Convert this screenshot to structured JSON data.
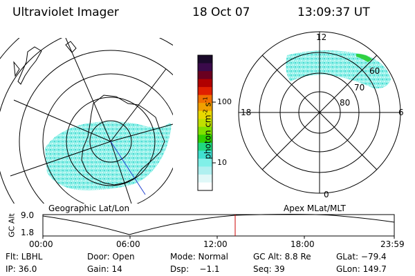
{
  "header": {
    "instrument": "Ultraviolet Imager",
    "date": "18 Oct 07",
    "time": "13:09:37 UT"
  },
  "left_map": {
    "label": "Geographic Lat/Lon"
  },
  "right_map": {
    "label": "Apex MLat/MLT",
    "mlt_labels": {
      "top": "12",
      "bottom": "0",
      "left": "18",
      "right": "6"
    },
    "lat_labels": [
      "60",
      "70",
      "80"
    ]
  },
  "colorbar": {
    "unit_label": "photon cm^-2 s^-1",
    "unit_base": "photon cm",
    "unit_exp1": "-2",
    "unit_mid": "s",
    "unit_exp2": "-1",
    "tick_labels": [
      "100",
      "10"
    ],
    "colors_top_to_bottom": [
      "#1a0a2a",
      "#3a0a4a",
      "#6a0020",
      "#b00000",
      "#e02000",
      "#f07000",
      "#f0a000",
      "#e8d800",
      "#c0e000",
      "#80e000",
      "#30d000",
      "#20d880",
      "#40e0d0",
      "#80f0e8",
      "#b0f0f0",
      "#e0f8f8",
      "#ffffff"
    ]
  },
  "altitude_plot": {
    "ylabel": "GC Alt",
    "y_ticks": [
      "9.0",
      "1.8"
    ],
    "x_ticks": [
      "00:00",
      "06:00",
      "12:00",
      "18:00",
      "23:59"
    ],
    "marker_color": "#cc0000"
  },
  "status": {
    "row1": [
      {
        "key": "flt",
        "text": "Flt: LBHL"
      },
      {
        "key": "door",
        "text": "Door: Open"
      },
      {
        "key": "mode",
        "text": "Mode: Normal"
      },
      {
        "key": "gcalt",
        "text": "GC Alt: 8.8 Re"
      },
      {
        "key": "glat",
        "text": "GLat: −79.4"
      }
    ],
    "row2": [
      {
        "key": "ip",
        "text": "IP: 36.0"
      },
      {
        "key": "gain",
        "text": "Gain: 14"
      },
      {
        "key": "dsp",
        "text": "Dsp:    −1.1"
      },
      {
        "key": "seq",
        "text": "Seq: 39"
      },
      {
        "key": "glon",
        "text": "GLon: 149.7"
      }
    ]
  }
}
